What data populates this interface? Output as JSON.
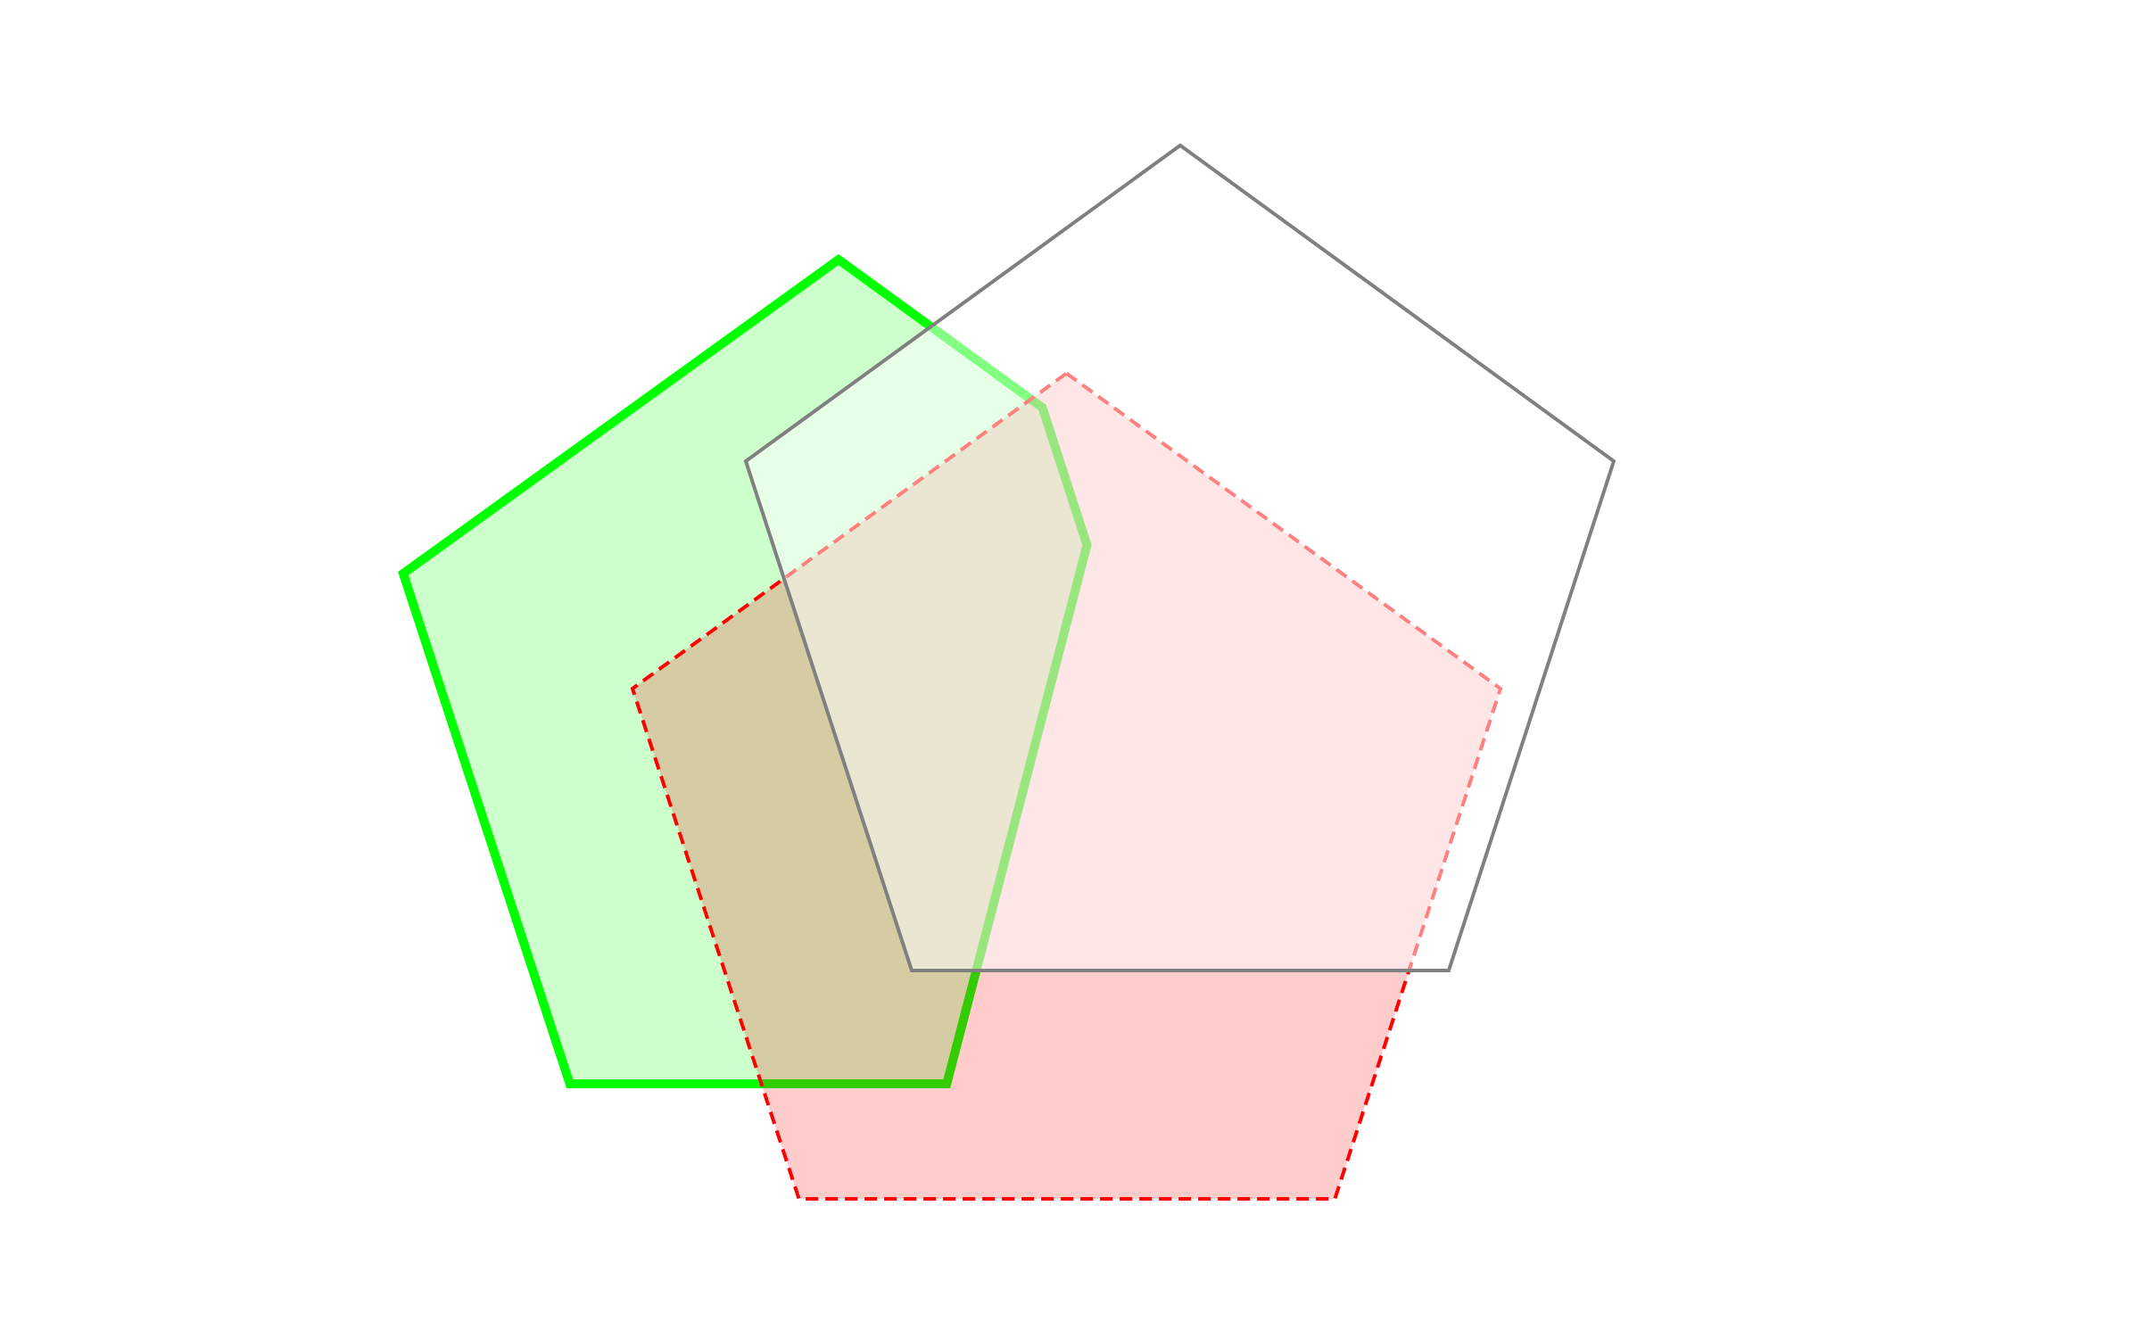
{
  "shapes": [
    {
      "name": "green-pentagon",
      "fill": "#00ff00",
      "fill_opacity": 0.2,
      "stroke": "#00ff00",
      "line_style": "solid"
    },
    {
      "name": "red-pentagon",
      "fill": "#ff0000",
      "fill_opacity": 0.2,
      "stroke": "#ff0000",
      "line_style": "dashed"
    },
    {
      "name": "gray-pentagon",
      "fill": "#ffffff",
      "fill_opacity": 0.5,
      "stroke": "#808080",
      "line_style": "solid"
    }
  ]
}
